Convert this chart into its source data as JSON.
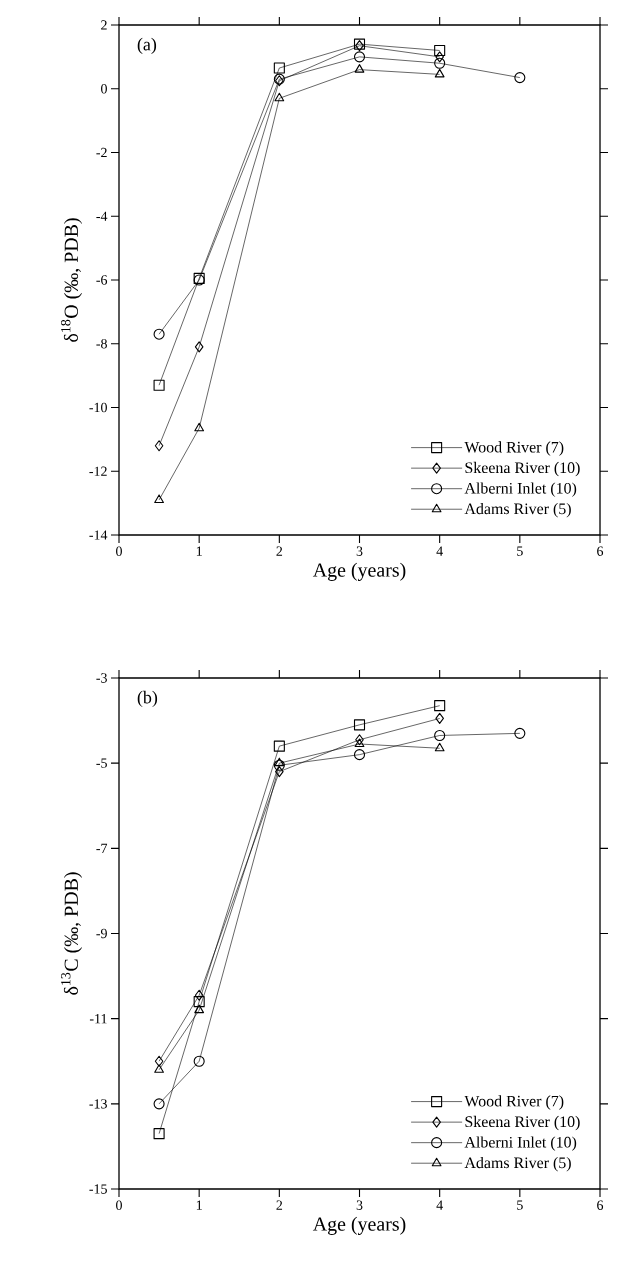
{
  "chart_data": [
    {
      "type": "line",
      "title": "(a)",
      "xlabel": "Age (years)",
      "ylabel": "δ$^{18}$O (‰, PDB)",
      "xlim": [
        0,
        6
      ],
      "xticks": [
        0,
        1,
        2,
        3,
        4,
        5,
        6
      ],
      "ylim": [
        -14,
        2
      ],
      "yticks": [
        -14,
        -12,
        -10,
        -8,
        -6,
        -4,
        -2,
        0,
        2
      ],
      "legend": "bottom right",
      "series": [
        {
          "name": "Wood River (7)",
          "color": "#000000",
          "marker": "square",
          "x": [
            0.5,
            1,
            2,
            3,
            4
          ],
          "values": [
            -9.3,
            -5.95,
            0.65,
            1.4,
            1.2
          ]
        },
        {
          "name": "Skeena River (10)",
          "color": "#000000",
          "marker": "diamond",
          "x": [
            0.5,
            1,
            2,
            3,
            4
          ],
          "values": [
            -11.2,
            -8.1,
            0.25,
            1.35,
            1.0
          ]
        },
        {
          "name": "Alberni Inlet (10)",
          "color": "#000000",
          "marker": "circle",
          "x": [
            0.5,
            1,
            2,
            3,
            4,
            5
          ],
          "values": [
            -7.7,
            -6.0,
            0.3,
            1.0,
            0.8,
            0.35
          ]
        },
        {
          "name": "Adams River (5)",
          "color": "#000000",
          "marker": "triangle",
          "x": [
            0.5,
            1,
            2,
            3,
            4
          ],
          "values": [
            -12.9,
            -10.65,
            -0.3,
            0.6,
            0.45
          ]
        }
      ]
    },
    {
      "type": "line",
      "title": "(b)",
      "xlabel": "Age (years)",
      "ylabel": "δ$^{13}$C (‰, PDB)",
      "xlim": [
        0,
        6
      ],
      "xticks": [
        0,
        1,
        2,
        3,
        4,
        5,
        6
      ],
      "ylim": [
        -15,
        -3
      ],
      "yticks": [
        -15,
        -13,
        -11,
        -9,
        -7,
        -5,
        -3
      ],
      "legend": "bottom right",
      "series": [
        {
          "name": "Wood River (7)",
          "color": "#000000",
          "marker": "square",
          "x": [
            0.5,
            1,
            2,
            3,
            4
          ],
          "values": [
            -13.7,
            -10.6,
            -4.6,
            -4.1,
            -3.65
          ]
        },
        {
          "name": "Skeena River (10)",
          "color": "#000000",
          "marker": "diamond",
          "x": [
            0.5,
            1,
            2,
            3,
            4
          ],
          "values": [
            -12.0,
            -10.45,
            -5.2,
            -4.45,
            -3.95
          ]
        },
        {
          "name": "Alberni Inlet (10)",
          "color": "#000000",
          "marker": "circle",
          "x": [
            0.5,
            1,
            2,
            3,
            4,
            5
          ],
          "values": [
            -13.0,
            -12.0,
            -5.05,
            -4.8,
            -4.35,
            -4.3
          ]
        },
        {
          "name": "Adams River (5)",
          "color": "#000000",
          "marker": "triangle",
          "x": [
            0.5,
            1,
            2,
            3,
            4
          ],
          "values": [
            -12.2,
            -10.8,
            -5.0,
            -4.55,
            -4.65
          ]
        }
      ]
    }
  ]
}
